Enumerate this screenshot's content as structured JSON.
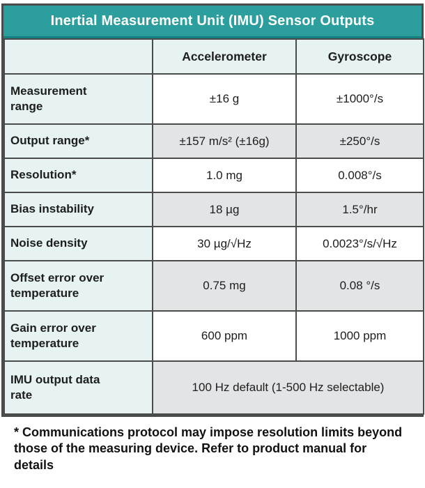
{
  "title": "Inertial Measurement Unit (IMU) Sensor Outputs",
  "columns": {
    "accelerometer": "Accelerometer",
    "gyroscope": "Gyroscope"
  },
  "rows": [
    {
      "label": "Measurement range",
      "accelerometer": "±16 g",
      "gyroscope": "±1000°/s"
    },
    {
      "label": "Output range*",
      "accelerometer": "±157 m/s² (±16g)",
      "gyroscope": "±250°/s"
    },
    {
      "label": "Resolution*",
      "accelerometer": "1.0 mg",
      "gyroscope": "0.008°/s"
    },
    {
      "label": "Bias instability",
      "accelerometer": "18 µg",
      "gyroscope": "1.5°/hr"
    },
    {
      "label": "Noise density",
      "accelerometer": "30 µg/√Hz",
      "gyroscope": "0.0023°/s/√Hz"
    },
    {
      "label": "Offset error over temperature",
      "accelerometer": "0.75 mg",
      "gyroscope": "0.08 °/s"
    },
    {
      "label": "Gain error over temperature",
      "accelerometer": "600 ppm",
      "gyroscope": "1000 ppm"
    },
    {
      "label": "IMU output data rate",
      "merged_value": "100 Hz default (1-500 Hz selectable)"
    }
  ],
  "footnote": "* Communications protocol may impose resolution limits beyond those of the measuring device. Refer to product manual for details",
  "colors": {
    "header_teal": "#2b9e9d",
    "header_teal_dark": "#15807f",
    "mint_cell": "#e6f3f2",
    "gray_cell": "#e3e4e6",
    "border_gray": "#4a4c4c"
  }
}
